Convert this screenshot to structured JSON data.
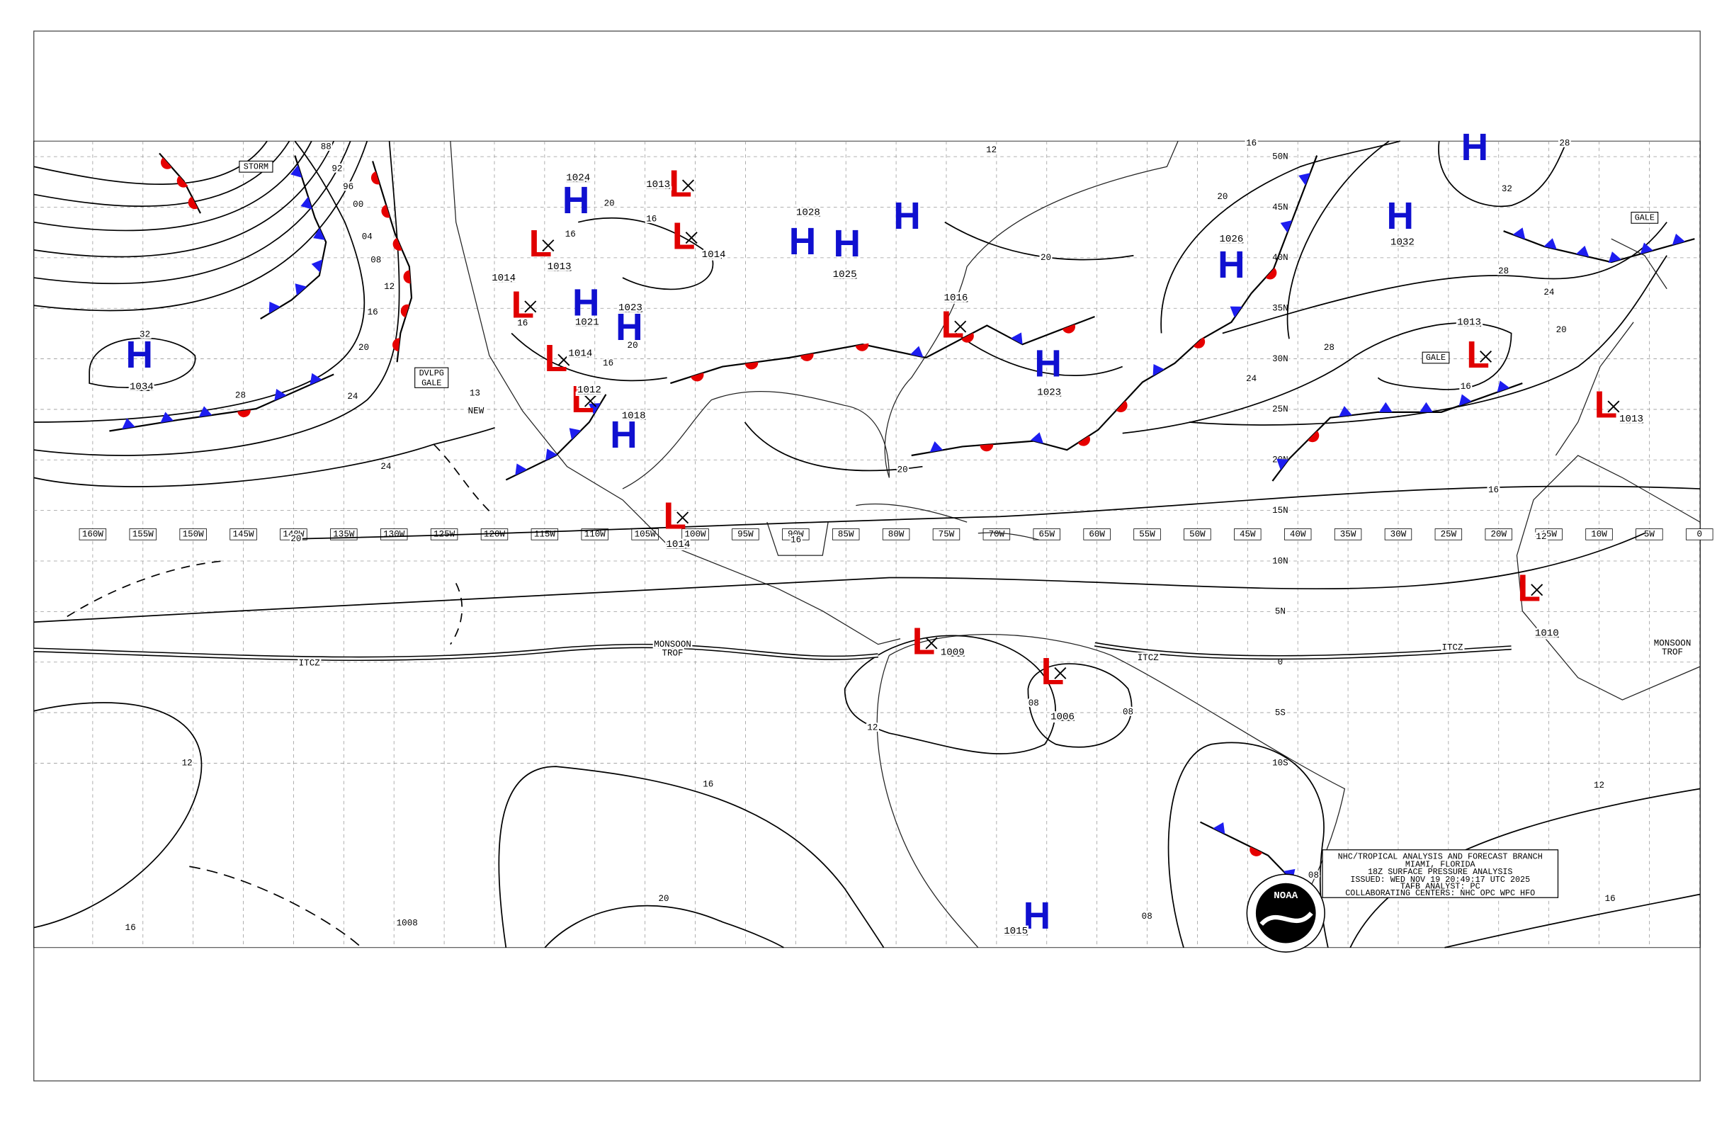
{
  "map": {
    "longitudes": [
      "160W",
      "155W",
      "150W",
      "145W",
      "140W",
      "135W",
      "130W",
      "125W",
      "120W",
      "115W",
      "110W",
      "105W",
      "100W",
      "95W",
      "90W",
      "85W",
      "80W",
      "75W",
      "70W",
      "65W",
      "60W",
      "55W",
      "50W",
      "45W",
      "40W",
      "35W",
      "30W",
      "25W",
      "20W",
      "15W",
      "10W",
      "5W",
      "0"
    ],
    "latitudes": [
      "50N",
      "45N",
      "40N",
      "35N",
      "30N",
      "25N",
      "20N",
      "15N",
      "10N",
      "5N",
      "0",
      "5S",
      "10S"
    ],
    "pressure_centers": [
      {
        "type": "H",
        "value": "1034"
      },
      {
        "type": "H",
        "value": "1024"
      },
      {
        "type": "L",
        "value": "1013"
      },
      {
        "type": "L",
        "value": "1013"
      },
      {
        "type": "L",
        "value": "1014"
      },
      {
        "type": "H",
        "value": "1028"
      },
      {
        "type": "H",
        "value": "1025"
      },
      {
        "type": "H"
      },
      {
        "type": "L",
        "value": "1014"
      },
      {
        "type": "H",
        "value": "1021"
      },
      {
        "type": "H",
        "value": "1023"
      },
      {
        "type": "L",
        "value": "1014"
      },
      {
        "type": "L",
        "value": "1012"
      },
      {
        "type": "H",
        "value": "1018"
      },
      {
        "type": "L",
        "value": "1014"
      },
      {
        "type": "L",
        "value": "1016"
      },
      {
        "type": "H",
        "value": "1023"
      },
      {
        "type": "H",
        "value": "1026"
      },
      {
        "type": "H",
        "value": "1032"
      },
      {
        "type": "H"
      },
      {
        "type": "L",
        "value": "1013"
      },
      {
        "type": "L",
        "value": "1013"
      },
      {
        "type": "L",
        "value": "1010"
      },
      {
        "type": "L",
        "value": "1009"
      },
      {
        "type": "L",
        "value": "1006"
      },
      {
        "type": "H",
        "value": "1015"
      }
    ],
    "isobar_labels": [
      "88",
      "92",
      "96",
      "00",
      "04",
      "08",
      "12",
      "16",
      "20",
      "24",
      "28",
      "32",
      "24",
      "20",
      "16",
      "20",
      "16",
      "16",
      "20",
      "16",
      "12",
      "16",
      "20",
      "24",
      "28",
      "24",
      "20",
      "28",
      "32",
      "28",
      "16",
      "12",
      "16",
      "20",
      "20",
      "16",
      "12",
      "08",
      "08",
      "08",
      "08",
      "12",
      "16",
      "16",
      "20",
      "16",
      "12",
      "13",
      "1008"
    ],
    "feature_labels": {
      "storm": "STORM",
      "gale_east": "GALE",
      "gale_central": "GALE",
      "dvlpg_gale": [
        "DVLPG",
        "GALE"
      ],
      "new": "NEW",
      "itcz": [
        "ITCZ",
        "ITCZ",
        "ITCZ"
      ],
      "monsoon_trof": [
        [
          "MONSOON",
          "TROF"
        ],
        [
          "MONSOON",
          "TROF"
        ]
      ]
    },
    "info_box": [
      "NHC/TROPICAL ANALYSIS AND FORECAST BRANCH",
      "MIAMI, FLORIDA",
      "18Z SURFACE PRESSURE ANALYSIS",
      "ISSUED: WED NOV 19 20:49:17 UTC 2025",
      "TAFB ANALYST: PC",
      "COLLABORATING CENTERS: NHC OPC WPC HFO"
    ],
    "logo": "NOAA"
  }
}
